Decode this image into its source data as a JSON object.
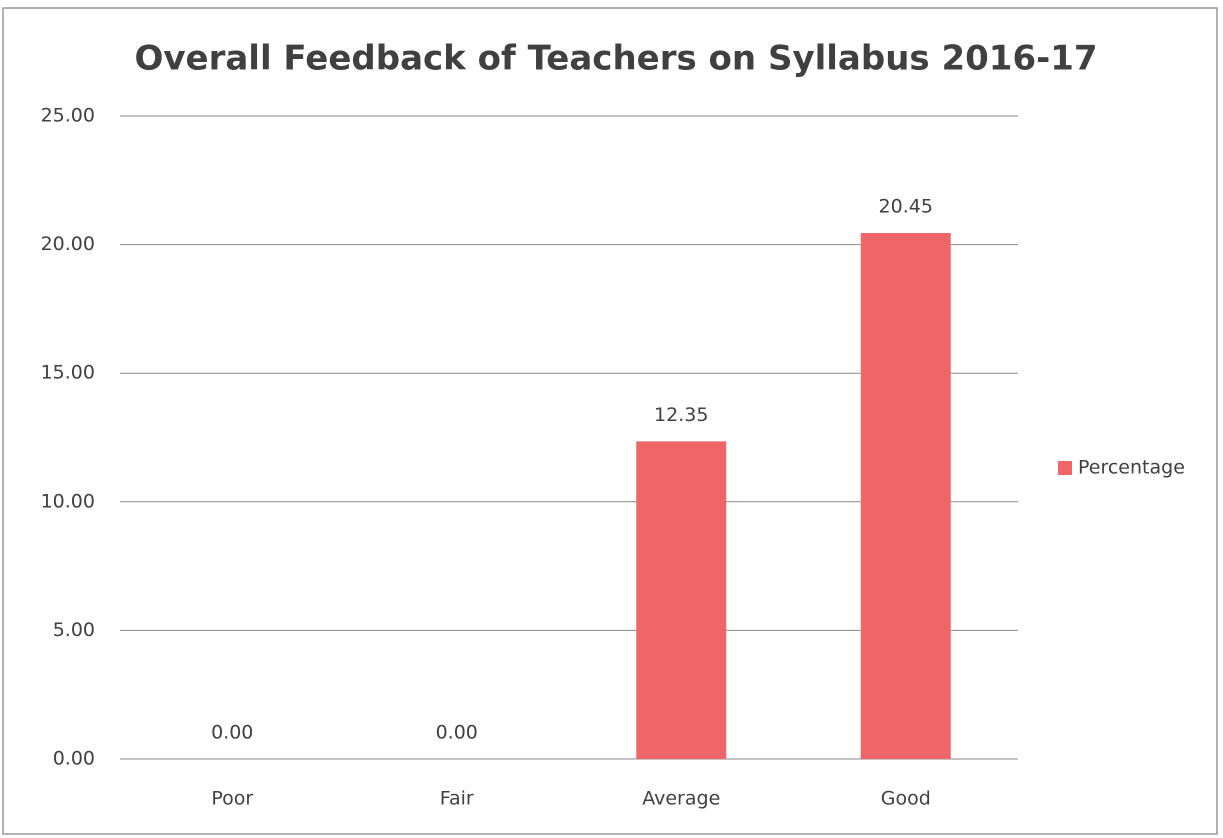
{
  "chart_data": {
    "type": "bar",
    "title": "Overall Feedback of Teachers on Syllabus 2016-17",
    "categories": [
      "Poor",
      "Fair",
      "Average",
      "Good"
    ],
    "series": [
      {
        "name": "Percentage",
        "color": "#f06668",
        "values": [
          0,
          0,
          12.35,
          20.45
        ],
        "value_labels": [
          "0.00",
          "0.00",
          "12.35",
          "20.45"
        ]
      }
    ],
    "ylim": [
      0,
      25
    ],
    "yticks": [
      {
        "value": 0,
        "label": "0.00"
      },
      {
        "value": 5,
        "label": "5.00"
      },
      {
        "value": 10,
        "label": "10.00"
      },
      {
        "value": 15,
        "label": "15.00"
      },
      {
        "value": 20,
        "label": "20.00"
      },
      {
        "value": 25,
        "label": "25.00"
      }
    ],
    "grid": true,
    "legend": "right"
  }
}
